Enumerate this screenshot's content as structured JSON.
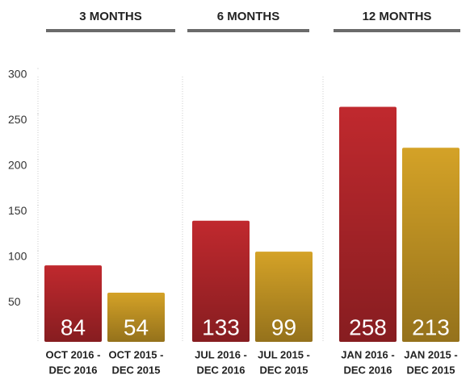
{
  "chart_data": {
    "type": "bar",
    "categories": [
      "3 MONTHS",
      "6 MONTHS",
      "12 MONTHS"
    ],
    "series": [
      {
        "color": "#c0292e",
        "values": [
          84,
          133,
          258
        ],
        "labels": [
          [
            "OCT 2016 -",
            "DEC 2016"
          ],
          [
            "JUL 2016 -",
            "DEC 2016"
          ],
          [
            "JAN 2016 -",
            "DEC 2016"
          ]
        ]
      },
      {
        "color": "#d4a227",
        "values": [
          54,
          99,
          213
        ],
        "labels": [
          [
            "OCT 2015 -",
            "DEC 2015"
          ],
          [
            "JUL 2015 -",
            "DEC 2015"
          ],
          [
            "JAN 2015 -",
            "DEC 2015"
          ]
        ]
      }
    ],
    "ylim": [
      0,
      300
    ],
    "yticks": [
      50,
      100,
      150,
      200,
      250,
      300
    ]
  }
}
